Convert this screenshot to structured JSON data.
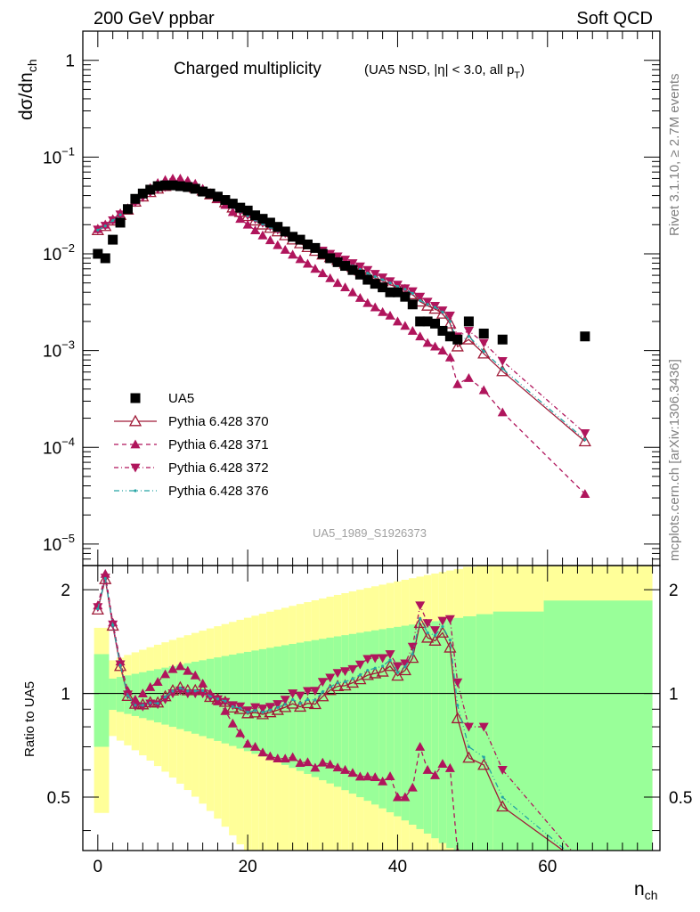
{
  "header": {
    "left_title": "200 GeV ppbar",
    "right_title": "Soft QCD"
  },
  "side_labels": {
    "rivet": "Rivet 3.1.10, ≥ 2.7M events",
    "mcplots": "mcplots.cern.ch [arXiv:1306.3436]"
  },
  "chart_data": {
    "type": "scatter",
    "title": "Charged multiplicity",
    "subtitle": "(UA5 NSD, |η| < 3.0, all p_T)",
    "analysis_label": "UA5_1989_S1926373",
    "xlabel": "n_ch",
    "ylabel": "dσ/dn_ch",
    "ratio_ylabel": "Ratio to UA5",
    "xlim": [
      -2,
      75
    ],
    "ylim": [
      6e-06,
      2
    ],
    "yscale": "log",
    "ratio_ylim": [
      0.35,
      2.35
    ],
    "ratio_yscale": "log",
    "xticks": [
      "0",
      "20",
      "40",
      "60"
    ],
    "yticks_main": [
      "10^-5",
      "10^-4",
      "10^-3",
      "10^-2",
      "10^-1",
      "1"
    ],
    "yticks_ratio": [
      "0.5",
      "1",
      "2"
    ],
    "legend_position": "bottom-left",
    "colors": {
      "data": "#000000",
      "p370": "#a01b38",
      "p371": "#b0155c",
      "p372": "#b0155c",
      "p376": "#26a4a4",
      "band_inner": "#99ff99",
      "band_outer": "#ffff99"
    },
    "data": {
      "name": "UA5",
      "x": [
        0,
        1,
        2,
        3,
        4,
        5,
        6,
        7,
        8,
        9,
        10,
        11,
        12,
        13,
        14,
        15,
        16,
        17,
        18,
        19,
        20,
        21,
        22,
        23,
        24,
        25,
        26,
        27,
        28,
        29,
        30,
        31,
        32,
        33,
        34,
        35,
        36,
        37,
        38,
        39,
        40,
        41,
        42,
        43,
        44,
        45,
        46,
        47,
        48,
        49.5,
        51.5,
        54,
        65
      ],
      "values": [
        0.01,
        0.009,
        0.014,
        0.021,
        0.029,
        0.037,
        0.042,
        0.046,
        0.05,
        0.051,
        0.051,
        0.05,
        0.049,
        0.047,
        0.044,
        0.042,
        0.039,
        0.036,
        0.033,
        0.03,
        0.028,
        0.025,
        0.023,
        0.021,
        0.019,
        0.017,
        0.015,
        0.014,
        0.0125,
        0.0115,
        0.01,
        0.009,
        0.0082,
        0.0075,
        0.0068,
        0.0061,
        0.0054,
        0.0049,
        0.0045,
        0.004,
        0.004,
        0.0036,
        0.003,
        0.002,
        0.002,
        0.0019,
        0.0016,
        0.0014,
        0.0013,
        0.002,
        0.0015,
        0.0013,
        0.0014
      ]
    },
    "series": [
      {
        "name": "Pythia 6.428 370",
        "x": [
          0,
          1,
          2,
          3,
          4,
          5,
          6,
          7,
          8,
          9,
          10,
          11,
          12,
          13,
          14,
          15,
          16,
          17,
          18,
          19,
          20,
          21,
          22,
          23,
          24,
          25,
          26,
          27,
          28,
          29,
          30,
          31,
          32,
          33,
          34,
          35,
          36,
          37,
          38,
          39,
          40,
          41,
          42,
          43,
          44,
          45,
          46,
          47,
          48,
          49.5,
          51.5,
          54,
          65
        ],
        "values": [
          0.0175,
          0.0193,
          0.022,
          0.0252,
          0.0285,
          0.0345,
          0.039,
          0.0433,
          0.047,
          0.05,
          0.052,
          0.052,
          0.05,
          0.048,
          0.045,
          0.041,
          0.0375,
          0.034,
          0.03,
          0.027,
          0.0245,
          0.022,
          0.02,
          0.0185,
          0.017,
          0.0155,
          0.014,
          0.0128,
          0.0117,
          0.0107,
          0.0098,
          0.0092,
          0.0086,
          0.0079,
          0.0073,
          0.0067,
          0.0061,
          0.0056,
          0.0052,
          0.0048,
          0.0045,
          0.0042,
          0.0038,
          0.0032,
          0.0029,
          0.0027,
          0.0024,
          0.0019,
          0.0011,
          0.0013,
          0.00093,
          0.00061,
          0.000115
        ]
      },
      {
        "name": "Pythia 6.428 371",
        "x": [
          0,
          1,
          2,
          3,
          4,
          5,
          6,
          7,
          8,
          9,
          10,
          11,
          12,
          13,
          14,
          15,
          16,
          17,
          18,
          19,
          20,
          21,
          22,
          23,
          24,
          25,
          26,
          27,
          28,
          29,
          30,
          31,
          32,
          33,
          34,
          35,
          36,
          37,
          38,
          39,
          40,
          41,
          42,
          43,
          44,
          45,
          46,
          47,
          48,
          49.5,
          51.5,
          54,
          65
        ],
        "values": [
          0.018,
          0.02,
          0.0225,
          0.026,
          0.0295,
          0.0355,
          0.042,
          0.048,
          0.054,
          0.058,
          0.06,
          0.06,
          0.057,
          0.053,
          0.047,
          0.042,
          0.037,
          0.032,
          0.027,
          0.023,
          0.02,
          0.0175,
          0.0155,
          0.0138,
          0.0123,
          0.011,
          0.0098,
          0.0088,
          0.0079,
          0.007,
          0.0063,
          0.0056,
          0.005,
          0.0045,
          0.004,
          0.0035,
          0.0031,
          0.0028,
          0.0025,
          0.0023,
          0.002,
          0.0018,
          0.0016,
          0.0014,
          0.0012,
          0.0011,
          0.001,
          0.00085,
          0.00045,
          0.00052,
          0.00039,
          0.00023,
          3.3e-05
        ]
      },
      {
        "name": "Pythia 6.428 372",
        "x": [
          0,
          1,
          2,
          3,
          4,
          5,
          6,
          7,
          8,
          9,
          10,
          11,
          12,
          13,
          14,
          15,
          16,
          17,
          18,
          19,
          20,
          21,
          22,
          23,
          24,
          25,
          26,
          27,
          28,
          29,
          30,
          31,
          32,
          33,
          34,
          35,
          36,
          37,
          38,
          39,
          40,
          41,
          42,
          43,
          44,
          45,
          46,
          47,
          48,
          49.5,
          51.5,
          54,
          65
        ],
        "values": [
          0.0178,
          0.0195,
          0.0222,
          0.0255,
          0.0288,
          0.034,
          0.0385,
          0.043,
          0.0465,
          0.049,
          0.051,
          0.051,
          0.049,
          0.047,
          0.044,
          0.041,
          0.0375,
          0.034,
          0.0305,
          0.0275,
          0.025,
          0.0228,
          0.0208,
          0.0192,
          0.0177,
          0.0163,
          0.015,
          0.0138,
          0.0127,
          0.0117,
          0.0108,
          0.01,
          0.0094,
          0.0087,
          0.008,
          0.0074,
          0.0068,
          0.0062,
          0.0057,
          0.0052,
          0.0048,
          0.0044,
          0.0041,
          0.0036,
          0.0032,
          0.0029,
          0.0026,
          0.0023,
          0.0014,
          0.0016,
          0.0012,
          0.00078,
          0.00014
        ]
      },
      {
        "name": "Pythia 6.428 376",
        "x": [
          0,
          1,
          2,
          3,
          4,
          5,
          6,
          7,
          8,
          9,
          10,
          11,
          12,
          13,
          14,
          15,
          16,
          17,
          18,
          19,
          20,
          21,
          22,
          23,
          24,
          25,
          26,
          27,
          28,
          29,
          30,
          31,
          32,
          33,
          34,
          35,
          36,
          37,
          38,
          39,
          40,
          41,
          42,
          43,
          44,
          45,
          46,
          47,
          48,
          49.5,
          51.5,
          54,
          65
        ],
        "values": [
          0.0176,
          0.0194,
          0.0221,
          0.0253,
          0.0286,
          0.0342,
          0.0388,
          0.0432,
          0.0468,
          0.0498,
          0.0518,
          0.0518,
          0.0498,
          0.0478,
          0.0448,
          0.0412,
          0.0376,
          0.0342,
          0.0302,
          0.0272,
          0.0247,
          0.0223,
          0.0203,
          0.0188,
          0.0173,
          0.0158,
          0.0144,
          0.0131,
          0.012,
          0.011,
          0.0101,
          0.0094,
          0.0088,
          0.0081,
          0.0075,
          0.0069,
          0.0063,
          0.0058,
          0.0054,
          0.005,
          0.0046,
          0.0043,
          0.0039,
          0.0033,
          0.003,
          0.0028,
          0.0025,
          0.002,
          0.0012,
          0.0014,
          0.00098,
          0.00065,
          0.00012
        ]
      }
    ]
  }
}
